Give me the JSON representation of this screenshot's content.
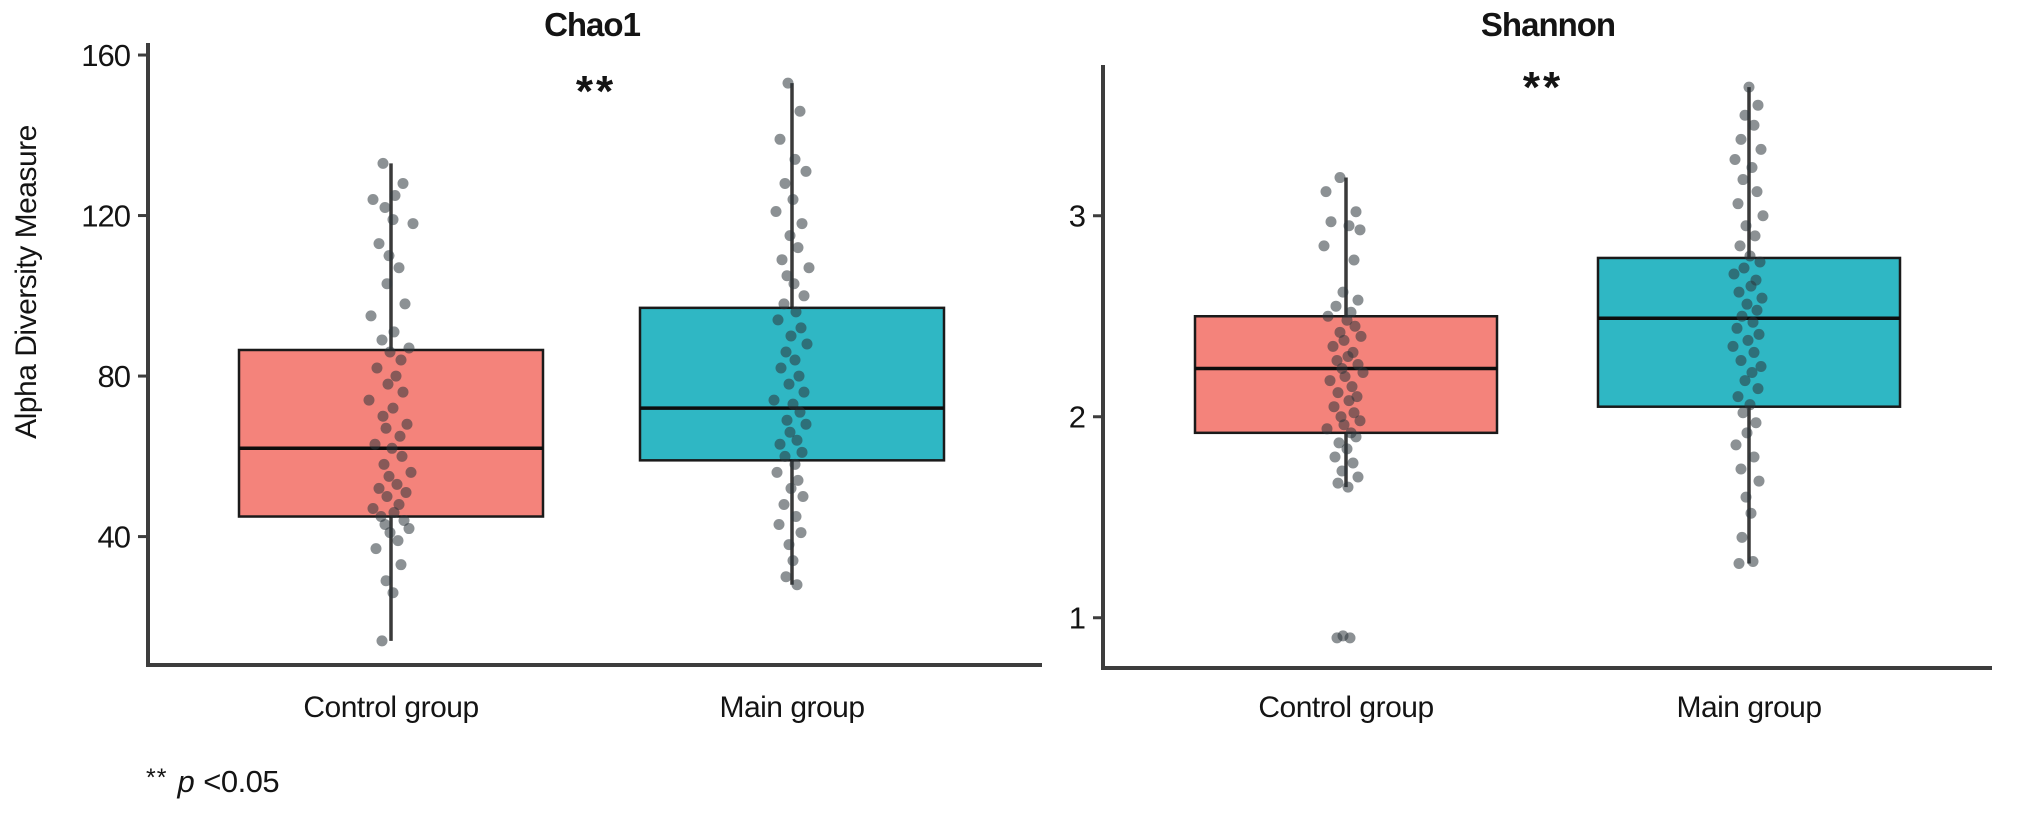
{
  "y_axis_label": "Alpha Diversity Measure",
  "footnote": {
    "marker": "**",
    "p_symbol": "p",
    "threshold": "<0.05"
  },
  "colors": {
    "control_fill": "#F4837B",
    "main_fill": "#2FB7C4",
    "box_border": "#1a1a1a",
    "median": "#0d0d0d",
    "whisker": "#3a3a3a",
    "axis": "#3d3d3d",
    "point": "#2e373d",
    "text": "#141414"
  },
  "chart_data": [
    {
      "type": "boxplot",
      "title": "Chao1",
      "significance": "**",
      "ylabel": "Alpha Diversity Measure",
      "ylim": [
        8,
        162.5
      ],
      "yticks": [
        40,
        80,
        120,
        160
      ],
      "grid": false,
      "legend": "none",
      "categories": [
        "Control group",
        "Main group"
      ],
      "series": [
        {
          "name": "Control group",
          "color_key": "control_fill",
          "box": {
            "min": 14,
            "q1": 45,
            "median": 62,
            "q3": 86.5,
            "max": 133
          },
          "points": [
            [
              -8,
              133
            ],
            [
              12,
              128
            ],
            [
              4,
              125
            ],
            [
              -18,
              124
            ],
            [
              -6,
              122
            ],
            [
              2,
              119
            ],
            [
              22,
              118
            ],
            [
              -12,
              113
            ],
            [
              -2,
              110
            ],
            [
              8,
              107
            ],
            [
              -4,
              103
            ],
            [
              14,
              98
            ],
            [
              -20,
              95
            ],
            [
              3,
              91
            ],
            [
              -9,
              89
            ],
            [
              18,
              87
            ],
            [
              -1,
              86
            ],
            [
              10,
              84
            ],
            [
              -14,
              82
            ],
            [
              5,
              80
            ],
            [
              -3,
              78
            ],
            [
              12,
              76
            ],
            [
              -22,
              74
            ],
            [
              2,
              72
            ],
            [
              -8,
              70
            ],
            [
              16,
              68
            ],
            [
              -5,
              67
            ],
            [
              9,
              65
            ],
            [
              -16,
              63
            ],
            [
              1,
              62
            ],
            [
              11,
              60
            ],
            [
              -7,
              58
            ],
            [
              20,
              56
            ],
            [
              -2,
              55
            ],
            [
              6,
              53
            ],
            [
              -12,
              52
            ],
            [
              15,
              51
            ],
            [
              -4,
              50
            ],
            [
              8,
              48
            ],
            [
              -18,
              47
            ],
            [
              3,
              46
            ],
            [
              -10,
              45
            ],
            [
              13,
              44
            ],
            [
              -6,
              43
            ],
            [
              18,
              42
            ],
            [
              -1,
              41
            ],
            [
              7,
              39
            ],
            [
              -15,
              37
            ],
            [
              10,
              33
            ],
            [
              -5,
              29
            ],
            [
              2,
              26
            ],
            [
              -9,
              14
            ]
          ]
        },
        {
          "name": "Main group",
          "color_key": "main_fill",
          "box": {
            "min": 28,
            "q1": 59,
            "median": 72,
            "q3": 97,
            "max": 153
          },
          "points": [
            [
              -4,
              153
            ],
            [
              8,
              146
            ],
            [
              -12,
              139
            ],
            [
              3,
              134
            ],
            [
              14,
              131
            ],
            [
              -7,
              128
            ],
            [
              1,
              124
            ],
            [
              -16,
              121
            ],
            [
              10,
              118
            ],
            [
              -2,
              115
            ],
            [
              6,
              112
            ],
            [
              -10,
              109
            ],
            [
              17,
              107
            ],
            [
              -5,
              105
            ],
            [
              2,
              103
            ],
            [
              12,
              100
            ],
            [
              -8,
              98
            ],
            [
              4,
              96
            ],
            [
              -14,
              94
            ],
            [
              9,
              92
            ],
            [
              -1,
              90
            ],
            [
              15,
              88
            ],
            [
              -6,
              86
            ],
            [
              3,
              84
            ],
            [
              -11,
              82
            ],
            [
              7,
              80
            ],
            [
              -3,
              78
            ],
            [
              12,
              76
            ],
            [
              -18,
              74
            ],
            [
              1,
              73
            ],
            [
              8,
              71
            ],
            [
              -5,
              69
            ],
            [
              14,
              68
            ],
            [
              -2,
              66
            ],
            [
              5,
              64
            ],
            [
              -12,
              63
            ],
            [
              10,
              61
            ],
            [
              -7,
              60
            ],
            [
              3,
              58
            ],
            [
              -15,
              56
            ],
            [
              6,
              54
            ],
            [
              -1,
              52
            ],
            [
              11,
              50
            ],
            [
              -8,
              48
            ],
            [
              4,
              45
            ],
            [
              -13,
              43
            ],
            [
              9,
              41
            ],
            [
              -3,
              38
            ],
            [
              1,
              34
            ],
            [
              -6,
              30
            ],
            [
              5,
              28
            ]
          ]
        }
      ]
    },
    {
      "type": "boxplot",
      "title": "Shannon",
      "significance": "**",
      "ylabel": "Alpha Diversity Measure",
      "ylim": [
        0.75,
        3.74
      ],
      "yticks": [
        1,
        2,
        3
      ],
      "grid": false,
      "legend": "none",
      "categories": [
        "Control group",
        "Main group"
      ],
      "series": [
        {
          "name": "Control group",
          "color_key": "control_fill",
          "box": {
            "min": 1.65,
            "q1": 1.92,
            "median": 2.24,
            "q3": 2.5,
            "max": 3.19
          },
          "outliers": [
            0.9,
            0.9,
            0.91
          ],
          "points": [
            [
              -6,
              3.19
            ],
            [
              -20,
              3.12
            ],
            [
              10,
              3.02
            ],
            [
              -15,
              2.97
            ],
            [
              3,
              2.95
            ],
            [
              14,
              2.93
            ],
            [
              -22,
              2.85
            ],
            [
              8,
              2.78
            ],
            [
              -3,
              2.62
            ],
            [
              12,
              2.58
            ],
            [
              -10,
              2.55
            ],
            [
              5,
              2.52
            ],
            [
              -18,
              2.5
            ],
            [
              1,
              2.48
            ],
            [
              9,
              2.45
            ],
            [
              -6,
              2.42
            ],
            [
              15,
              2.4
            ],
            [
              -2,
              2.38
            ],
            [
              -13,
              2.35
            ],
            [
              7,
              2.32
            ],
            [
              2,
              2.3
            ],
            [
              -9,
              2.28
            ],
            [
              12,
              2.26
            ],
            [
              -4,
              2.24
            ],
            [
              17,
              2.22
            ],
            [
              -1,
              2.2
            ],
            [
              -16,
              2.18
            ],
            [
              6,
              2.15
            ],
            [
              -8,
              2.12
            ],
            [
              11,
              2.1
            ],
            [
              3,
              2.08
            ],
            [
              -12,
              2.05
            ],
            [
              8,
              2.02
            ],
            [
              -5,
              2.0
            ],
            [
              14,
              1.98
            ],
            [
              -2,
              1.96
            ],
            [
              -19,
              1.94
            ],
            [
              5,
              1.92
            ],
            [
              10,
              1.9
            ],
            [
              -7,
              1.87
            ],
            [
              1,
              1.84
            ],
            [
              -11,
              1.8
            ],
            [
              7,
              1.77
            ],
            [
              -4,
              1.73
            ],
            [
              12,
              1.7
            ],
            [
              -8,
              1.67
            ],
            [
              2,
              1.65
            ],
            [
              -3,
              0.91
            ],
            [
              4,
              0.9
            ],
            [
              -9,
              0.9
            ]
          ]
        },
        {
          "name": "Main group",
          "color_key": "main_fill",
          "box": {
            "min": 1.27,
            "q1": 2.05,
            "median": 2.49,
            "q3": 2.79,
            "max": 3.64
          },
          "points": [
            [
              0,
              3.64
            ],
            [
              9,
              3.55
            ],
            [
              -4,
              3.5
            ],
            [
              5,
              3.45
            ],
            [
              -8,
              3.38
            ],
            [
              12,
              3.33
            ],
            [
              -14,
              3.28
            ],
            [
              3,
              3.24
            ],
            [
              -6,
              3.18
            ],
            [
              8,
              3.12
            ],
            [
              -11,
              3.06
            ],
            [
              14,
              3.0
            ],
            [
              -3,
              2.95
            ],
            [
              6,
              2.9
            ],
            [
              -9,
              2.85
            ],
            [
              1,
              2.8
            ],
            [
              11,
              2.77
            ],
            [
              -5,
              2.74
            ],
            [
              -15,
              2.71
            ],
            [
              7,
              2.68
            ],
            [
              2,
              2.65
            ],
            [
              -10,
              2.62
            ],
            [
              13,
              2.59
            ],
            [
              -2,
              2.56
            ],
            [
              8,
              2.53
            ],
            [
              -7,
              2.5
            ],
            [
              4,
              2.47
            ],
            [
              -12,
              2.44
            ],
            [
              10,
              2.41
            ],
            [
              -1,
              2.38
            ],
            [
              -16,
              2.35
            ],
            [
              5,
              2.32
            ],
            [
              -8,
              2.28
            ],
            [
              12,
              2.25
            ],
            [
              3,
              2.22
            ],
            [
              -4,
              2.18
            ],
            [
              9,
              2.14
            ],
            [
              -11,
              2.1
            ],
            [
              1,
              2.06
            ],
            [
              -6,
              2.02
            ],
            [
              7,
              1.97
            ],
            [
              -2,
              1.92
            ],
            [
              -13,
              1.86
            ],
            [
              5,
              1.8
            ],
            [
              -8,
              1.74
            ],
            [
              10,
              1.68
            ],
            [
              -3,
              1.6
            ],
            [
              2,
              1.52
            ],
            [
              -7,
              1.4
            ],
            [
              4,
              1.28
            ],
            [
              -10,
              1.27
            ]
          ]
        }
      ]
    }
  ]
}
